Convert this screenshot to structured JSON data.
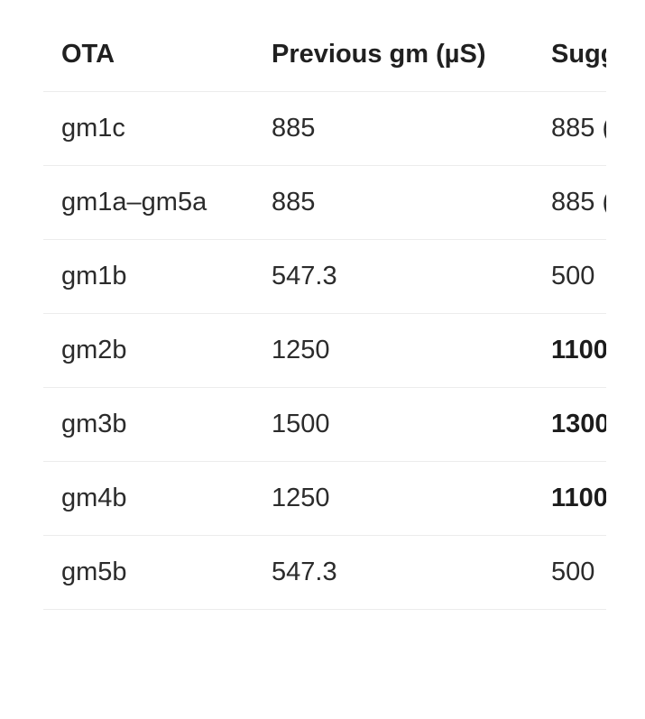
{
  "table": {
    "headers": [
      "OTA",
      "Previous gm (µS)",
      "Sugg"
    ],
    "rows": [
      {
        "ota": "gm1c",
        "previous": "885",
        "suggested": "885 (",
        "suggested_bold": false
      },
      {
        "ota": "gm1a–gm5a",
        "previous": "885",
        "suggested": "885 (",
        "suggested_bold": false
      },
      {
        "ota": "gm1b",
        "previous": "547.3",
        "suggested": "500",
        "suggested_bold": false
      },
      {
        "ota": "gm2b",
        "previous": "1250",
        "suggested": "1100",
        "suggested_bold": true
      },
      {
        "ota": "gm3b",
        "previous": "1500",
        "suggested": "1300",
        "suggested_bold": true
      },
      {
        "ota": "gm4b",
        "previous": "1250",
        "suggested": "1100",
        "suggested_bold": true
      },
      {
        "ota": "gm5b",
        "previous": "547.3",
        "suggested": "500",
        "suggested_bold": false
      }
    ]
  }
}
